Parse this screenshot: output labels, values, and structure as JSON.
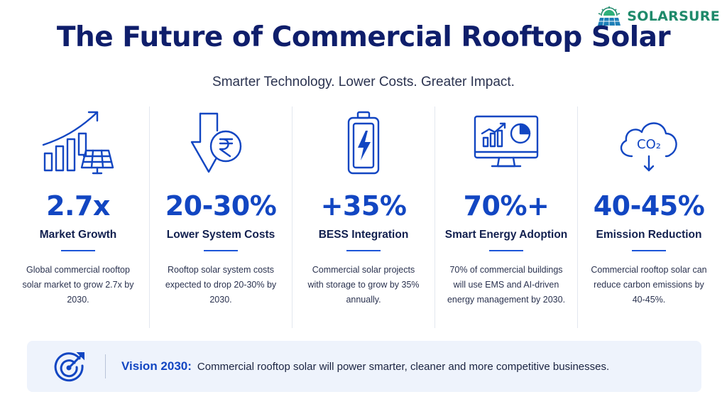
{
  "brand": {
    "name": "SOLARSURE",
    "logo_icon": "solar-sunrise-logo",
    "color": "#1f8a6b"
  },
  "header": {
    "title": "The Future of Commercial Rooftop Solar",
    "subtitle": "Smarter Technology. Lower Costs. Greater Impact."
  },
  "accent": "#1246c2",
  "stats": [
    {
      "icon": "growth-chart-solar-panel-icon",
      "value": "2.7x",
      "label": "Market Growth",
      "desc": "Global commercial rooftop solar market to grow 2.7x by 2030."
    },
    {
      "icon": "down-arrow-rupee-icon",
      "value": "20-30%",
      "label": "Lower System Costs",
      "desc": "Rooftop solar system costs expected to drop 20-30% by 2030."
    },
    {
      "icon": "battery-bolt-icon",
      "value": "+35%",
      "label": "BESS Integration",
      "desc": "Commercial solar projects with storage to grow by 35% annually."
    },
    {
      "icon": "monitor-analytics-icon",
      "value": "70%+",
      "label": "Smart Energy Adoption",
      "desc": "70% of commercial buildings will use EMS and AI-driven energy management by 2030."
    },
    {
      "icon": "co2-cloud-icon",
      "value": "40-45%",
      "label": "Emission Reduction",
      "desc": "Commercial rooftop solar can reduce carbon emissions by 40-45%.",
      "icon_text": "CO₂"
    }
  ],
  "vision": {
    "icon": "target-arrow-icon",
    "heading": "Vision 2030:",
    "text": "Commercial rooftop solar will power smarter, cleaner and more competitive businesses."
  }
}
